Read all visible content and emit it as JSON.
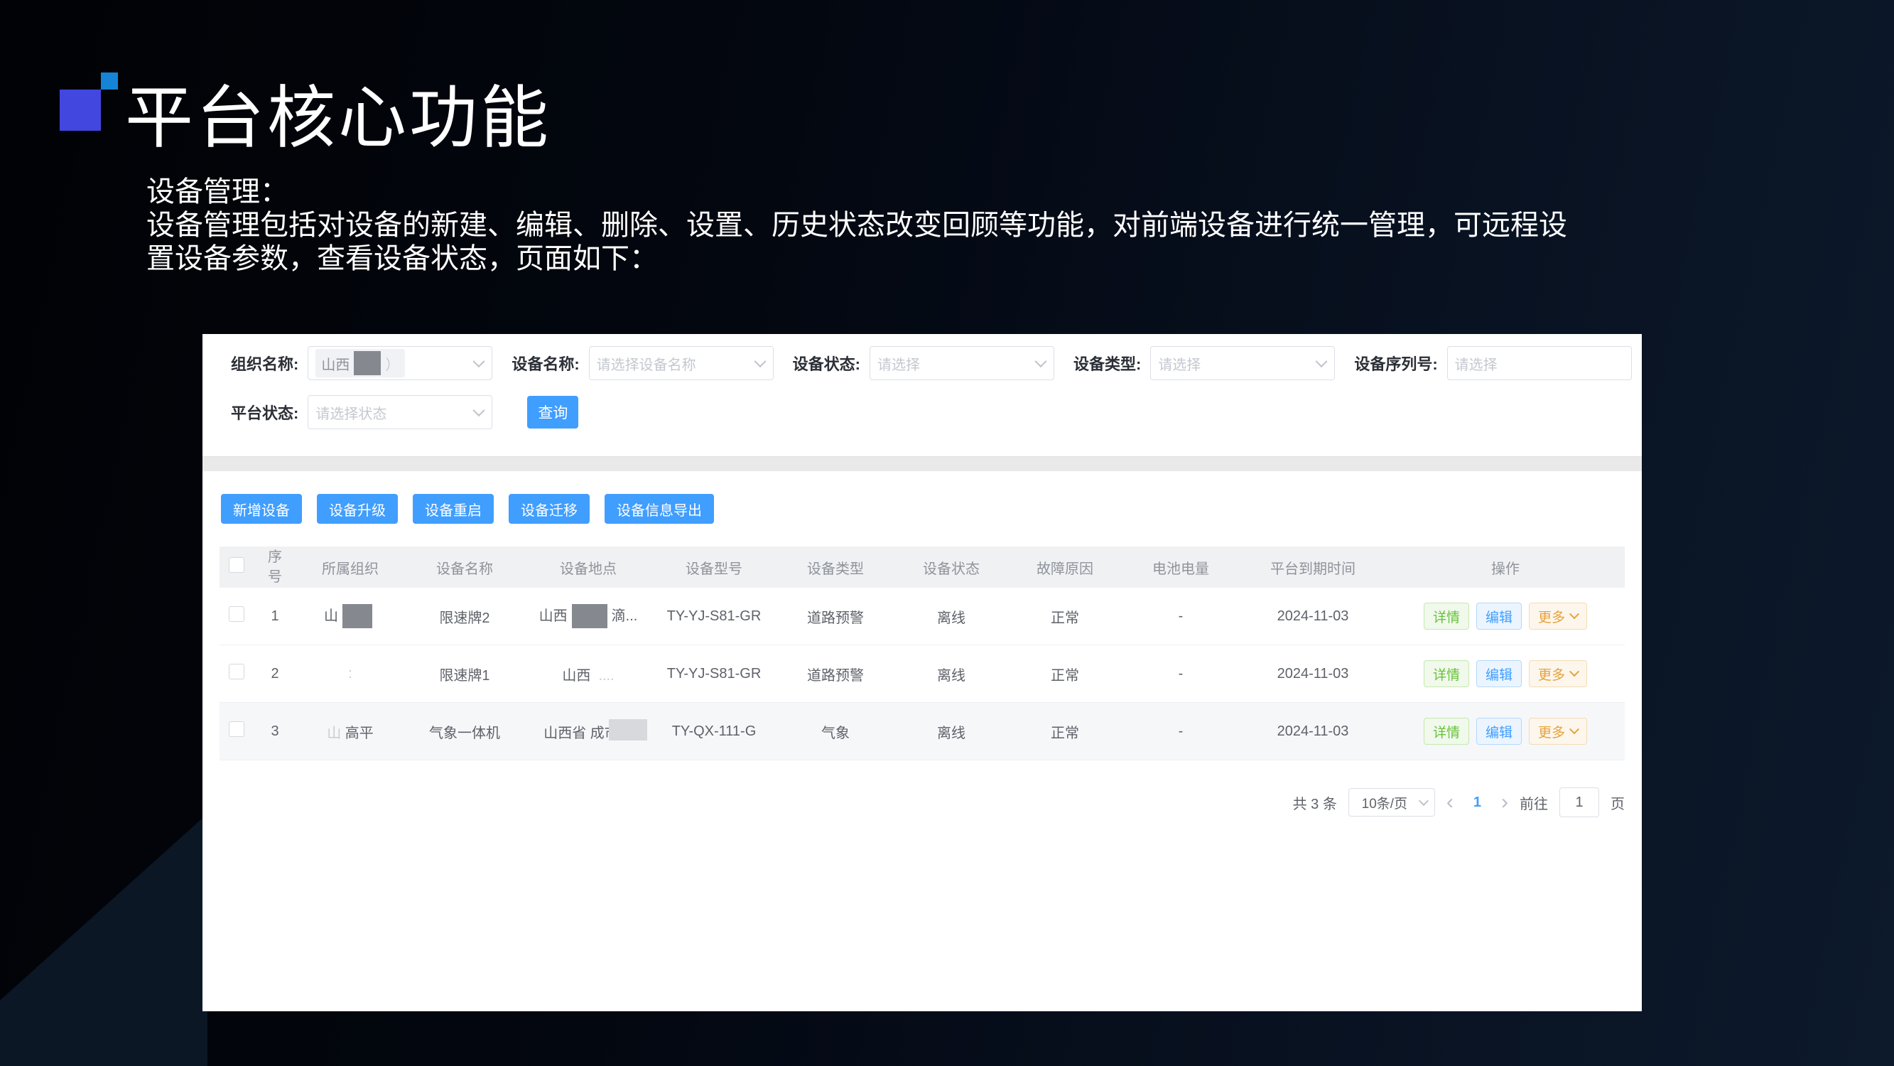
{
  "slide": {
    "title": "平台核心功能",
    "paragraph": [
      "设备管理：",
      "设备管理包括对设备的新建、编辑、删除、设置、历史状态改变回顾等功能，对前端设备进行统一管理，可远程设",
      "置设备参数，查看设备状态，页面如下："
    ],
    "accent_square_big_color": "#4247DF",
    "accent_square_small_color": "#1584D6"
  },
  "app": {
    "primary_color": "#409EFF",
    "filters": [
      {
        "label": "组织名称:",
        "type": "select",
        "value_parts": [
          {
            "text": "山西"
          },
          {
            "blur": 38
          },
          {
            "text": "）",
            "faint": true
          }
        ]
      },
      {
        "label": "设备名称:",
        "type": "select",
        "placeholder": "请选择设备名称"
      },
      {
        "label": "设备状态:",
        "type": "select",
        "placeholder": "请选择"
      },
      {
        "label": "设备类型:",
        "type": "select",
        "placeholder": "请选择"
      },
      {
        "label": "设备序列号:",
        "type": "input",
        "placeholder": "请选择"
      },
      {
        "label": "平台状态:",
        "type": "select",
        "placeholder": "请选择状态"
      }
    ],
    "query_button": "查询",
    "action_buttons": [
      "新增设备",
      "设备升级",
      "设备重启",
      "设备迁移",
      "设备信息导出"
    ],
    "table": {
      "columns": [
        "序号",
        "所属组织",
        "设备名称",
        "设备地点",
        "设备型号",
        "设备类型",
        "设备状态",
        "故障原因",
        "电池电量",
        "平台到期时间",
        "操作"
      ],
      "actions": [
        "详情",
        "编辑",
        "更多"
      ],
      "rows": [
        {
          "index": "1",
          "org_parts": [
            {
              "text": "山"
            },
            {
              "blur": 42
            }
          ],
          "name": "限速牌2",
          "loc_parts": [
            {
              "text": "山西"
            },
            {
              "blur": 50
            },
            {
              "text": "滴..."
            }
          ],
          "model": "TY-YJ-S81-GR",
          "type": "道路预警",
          "status": "离线",
          "fault": "正常",
          "battery": "-",
          "expire": "2024-11-03"
        },
        {
          "index": "2",
          "org_parts": [
            {
              "text": ":",
              "faint": true
            }
          ],
          "name": "限速牌1",
          "loc_parts": [
            {
              "text": "山西"
            },
            {
              "text": "  ....",
              "faint": true
            }
          ],
          "model": "TY-YJ-S81-GR",
          "type": "道路预警",
          "status": "离线",
          "fault": "正常",
          "battery": "-",
          "expire": "2024-11-03"
        },
        {
          "index": "3",
          "org_parts": [
            {
              "text": "山 ",
              "faint": true
            },
            {
              "text": "高平"
            }
          ],
          "name": "气象一体机",
          "loc_parts": [
            {
              "text": "山西省 成市高"
            }
          ],
          "model": "TY-QX-111-G",
          "type": "气象",
          "status": "离线",
          "fault": "正常",
          "battery": "-",
          "expire": "2024-11-03"
        }
      ]
    },
    "pagination": {
      "total": "共 3 条",
      "page_size": "10条/页",
      "prev": "‹",
      "current_page": "1",
      "next": "›",
      "goto_label": "前往",
      "goto_value": "1",
      "page_suffix": "页"
    }
  }
}
